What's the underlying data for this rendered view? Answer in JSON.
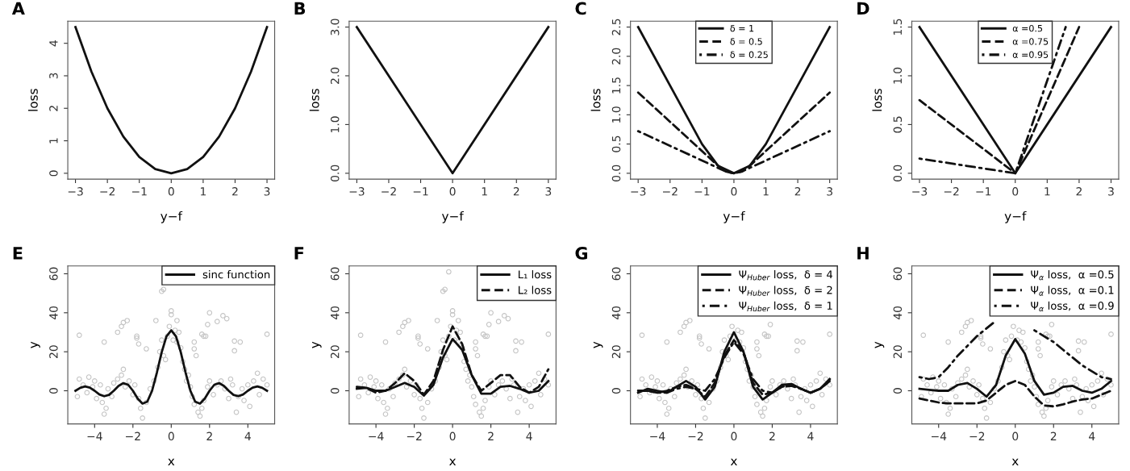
{
  "chart_data": [
    {
      "type": "line",
      "title": "A",
      "xlabel": "y−f",
      "ylabel": "loss",
      "xlim": [
        -3.24,
        3.24
      ],
      "ylim": [
        -0.18,
        4.68
      ],
      "xticks": [
        {
          "value": -3,
          "label": "−3"
        },
        {
          "value": -2,
          "label": "−2"
        },
        {
          "value": -1,
          "label": "−1"
        },
        0,
        1,
        2,
        3
      ],
      "yticks": [
        0,
        1,
        2,
        3,
        4
      ],
      "x": [
        -3,
        -2.5,
        -2,
        -1.5,
        -1,
        -0.5,
        0,
        0.5,
        1,
        1.5,
        2,
        2.5,
        3
      ],
      "series": [
        {
          "color": "#111111",
          "line_style": "solid",
          "values": [
            4.5,
            3.13,
            2,
            1.13,
            0.5,
            0.13,
            0,
            0.13,
            0.5,
            1.13,
            2,
            3.13,
            4.5
          ]
        }
      ]
    },
    {
      "type": "line",
      "title": "B",
      "xlabel": "y−f",
      "ylabel": "loss",
      "xlim": [
        -3.24,
        3.24
      ],
      "ylim": [
        -0.12,
        3.12
      ],
      "xticks": [
        {
          "value": -3,
          "label": "−3"
        },
        {
          "value": -2,
          "label": "−2"
        },
        {
          "value": -1,
          "label": "−1"
        },
        0,
        1,
        2,
        3
      ],
      "yticks": [
        {
          "value": 0,
          "label": "0.0"
        },
        {
          "value": 1,
          "label": "1.0"
        },
        {
          "value": 2,
          "label": "2.0"
        },
        {
          "value": 3,
          "label": "3.0"
        }
      ],
      "x": [
        -3,
        0,
        3
      ],
      "series": [
        {
          "color": "#111111",
          "line_style": "solid",
          "values": [
            3,
            0,
            3
          ]
        }
      ]
    },
    {
      "type": "line",
      "title": "C",
      "xlabel": "y−f",
      "ylabel": "loss",
      "xlim": [
        -3.24,
        3.24
      ],
      "ylim": [
        -0.1,
        2.6
      ],
      "legend": "top",
      "xticks": [
        {
          "value": -3,
          "label": "−3"
        },
        {
          "value": -2,
          "label": "−2"
        },
        {
          "value": -1,
          "label": "−1"
        },
        0,
        1,
        2,
        3
      ],
      "yticks": [
        {
          "value": 0,
          "label": "0.0"
        },
        0.5,
        {
          "value": 1,
          "label": "1.0"
        },
        1.5,
        {
          "value": 2,
          "label": "2.0"
        },
        2.5
      ],
      "series": [
        {
          "name": "δ = 1",
          "color": "#111111",
          "line_style": "solid",
          "x": [
            -3,
            -2,
            -1,
            -0.5,
            0,
            0.5,
            1,
            2,
            3
          ],
          "values": [
            2.5,
            1.5,
            0.5,
            0.13,
            0,
            0.13,
            0.5,
            1.5,
            2.5
          ]
        },
        {
          "name": "δ = 0.5",
          "color": "#111111",
          "line_style": "dashed",
          "x": [
            -3,
            -0.5,
            -0.25,
            0,
            0.25,
            0.5,
            3
          ],
          "values": [
            1.38,
            0.13,
            0.03,
            0,
            0.03,
            0.13,
            1.38
          ]
        },
        {
          "name": "δ = 0.25",
          "color": "#111111",
          "line_style": "dashdot",
          "x": [
            -3,
            -0.25,
            0,
            0.25,
            3
          ],
          "values": [
            0.72,
            0.03,
            0,
            0.03,
            0.72
          ]
        }
      ]
    },
    {
      "type": "line",
      "title": "D",
      "xlabel": "y−f",
      "ylabel": "loss",
      "xlim": [
        -3.24,
        3.24
      ],
      "ylim": [
        -0.06,
        1.56
      ],
      "legend": "top",
      "xticks": [
        {
          "value": -3,
          "label": "−3"
        },
        {
          "value": -2,
          "label": "−2"
        },
        {
          "value": -1,
          "label": "−1"
        },
        0,
        1,
        2,
        3
      ],
      "yticks": [
        {
          "value": 0,
          "label": "0.0"
        },
        0.5,
        {
          "value": 1,
          "label": "1.0"
        },
        1.5
      ],
      "series": [
        {
          "name": "α =0.5",
          "color": "#111111",
          "line_style": "solid",
          "x": [
            -3,
            0,
            3
          ],
          "values": [
            1.5,
            0,
            1.5
          ]
        },
        {
          "name": "α =0.75",
          "color": "#111111",
          "line_style": "dashed",
          "x": [
            -3,
            0,
            2
          ],
          "values": [
            0.75,
            0,
            1.5
          ]
        },
        {
          "name": "α =0.95",
          "color": "#111111",
          "line_style": "dashdot",
          "x": [
            -3,
            0,
            1.58
          ],
          "values": [
            0.15,
            0,
            1.5
          ]
        }
      ]
    },
    {
      "type": "line",
      "title": "E",
      "xlabel": "x",
      "ylabel": "y",
      "xlim": [
        -5.4,
        5.4
      ],
      "ylim": [
        -17,
        64
      ],
      "legend": "top right",
      "xticks": [
        {
          "value": -4,
          "label": "−4"
        },
        {
          "value": -2,
          "label": "−2"
        },
        0,
        2,
        4
      ],
      "yticks": [
        0,
        20,
        40,
        60
      ],
      "series": [
        {
          "type": "scatter",
          "marker": "circle",
          "color": "#c4c4c4",
          "x": [
            -4.9,
            -4.8,
            -4.6,
            -4.4,
            -4.3,
            -4.1,
            -4,
            -3.9,
            -3.7,
            -3.6,
            -3.5,
            -3.4,
            -3.3,
            -3.1,
            -3,
            -2.8,
            -2.6,
            -2.5,
            -2.4,
            -2.2,
            -2,
            -1.9,
            -1.7,
            -1.6,
            -1.5,
            -1.3,
            -1.1,
            -0.9,
            -0.7,
            -0.6,
            -0.5,
            -0.4,
            -0.3,
            -0.2,
            -0.1,
            0.1,
            0.2,
            0.3,
            0.4,
            0.5,
            0.6,
            0.7,
            0.8,
            0.9,
            1,
            1.1,
            1.2,
            1.4,
            1.5,
            1.6,
            1.7,
            1.9,
            2,
            2.2,
            2.4,
            2.6,
            2.8,
            3,
            3.1,
            3.2,
            3.4,
            3.5,
            3.7,
            3.8,
            4,
            4.1,
            4.3,
            4.5,
            4.6,
            4.8,
            5,
            -4.8,
            -3.5,
            -2.8,
            -2.6,
            -2.5,
            -2.3,
            -1.8,
            -1.8,
            -1.7,
            -1.3,
            1.2,
            1.2,
            1.3,
            1.6,
            1.7,
            1.8,
            1.9,
            3.3,
            3.3,
            3.6,
            5,
            -0.8,
            -0.5,
            -0.4,
            0,
            0,
            0.3,
            2,
            2.4,
            2.7,
            2.9
          ],
          "values": [
            -3,
            6,
            3,
            -1,
            7,
            2,
            5,
            -4,
            3,
            -6,
            -12,
            -9,
            1,
            -3,
            4,
            6,
            8,
            11,
            2,
            5,
            -2,
            3,
            -4,
            -9,
            -14,
            -6,
            1,
            5,
            12,
            20,
            26,
            18,
            16,
            28,
            33,
            26,
            31,
            25,
            30,
            22,
            15,
            11,
            5,
            8,
            2,
            -3,
            -7,
            -11,
            -13,
            -9,
            -5,
            2,
            5,
            -2,
            3,
            5,
            1,
            -4,
            6,
            3,
            -11,
            -3,
            1,
            -5,
            3,
            -8,
            5,
            9,
            -2,
            6,
            3,
            28.5,
            25,
            30,
            33,
            35,
            36,
            28,
            27,
            24,
            21.5,
            25,
            21.5,
            18,
            29,
            28,
            28,
            34,
            25.5,
            20.5,
            25,
            29,
            36,
            51,
            52,
            41,
            39,
            36,
            40,
            35.5,
            38.5,
            37
          ]
        },
        {
          "name": "sinc function",
          "color": "#111111",
          "line_style": "solid",
          "x": [
            -5,
            -4.75,
            -4.5,
            -4.25,
            -4,
            -3.75,
            -3.5,
            -3.25,
            -3,
            -2.75,
            -2.5,
            -2.25,
            -2,
            -1.75,
            -1.5,
            -1.25,
            -1,
            -0.75,
            -0.5,
            -0.25,
            0,
            0.25,
            0.5,
            0.75,
            1,
            1.25,
            1.5,
            1.75,
            2,
            2.25,
            2.5,
            2.75,
            3,
            3.25,
            3.5,
            3.75,
            4,
            4.25,
            4.5,
            4.75,
            5
          ],
          "values": [
            0,
            1.5,
            2.2,
            1.6,
            0,
            -1.9,
            -2.8,
            -2.1,
            0,
            2.5,
            3.9,
            3.1,
            0,
            -4.0,
            -6.6,
            -5.6,
            0,
            9.3,
            19.7,
            27.9,
            31,
            27.9,
            19.7,
            9.3,
            0,
            -5.6,
            -6.6,
            -4.0,
            0,
            3.1,
            3.9,
            2.5,
            0,
            -2.1,
            -2.8,
            -1.9,
            0,
            1.6,
            2.2,
            1.5,
            0
          ]
        }
      ]
    },
    {
      "type": "line",
      "title": "F",
      "xlabel": "x",
      "ylabel": "y",
      "xlim": [
        -5.4,
        5.4
      ],
      "ylim": [
        -17,
        64
      ],
      "legend": "top right",
      "xticks": [
        {
          "value": -4,
          "label": "−4"
        },
        {
          "value": -2,
          "label": "−2"
        },
        0,
        2,
        4
      ],
      "yticks": [
        0,
        20,
        40,
        60
      ],
      "x": [
        -5,
        -4.5,
        -4,
        -3.5,
        -3,
        -2.5,
        -2,
        -1.5,
        -1,
        -0.5,
        0,
        0.5,
        1,
        1.5,
        2,
        2.5,
        3,
        3.5,
        4,
        4.5,
        5
      ],
      "series": [
        {
          "type": "scatter",
          "marker": "circle",
          "color": "#c4c4c4",
          "x": [
            -4.9,
            -4.8,
            -4.6,
            -4.4,
            -4.3,
            -4.1,
            -4,
            -3.9,
            -3.7,
            -3.6,
            -3.5,
            -3.4,
            -3.3,
            -3.1,
            -3,
            -2.8,
            -2.6,
            -2.5,
            -2.4,
            -2.2,
            -2,
            -1.9,
            -1.7,
            -1.6,
            -1.5,
            -1.3,
            -1.1,
            -0.9,
            -0.7,
            -0.6,
            -0.5,
            -0.4,
            -0.3,
            -0.2,
            -0.1,
            0.1,
            0.2,
            0.3,
            0.4,
            0.5,
            0.6,
            0.7,
            0.8,
            0.9,
            1,
            1.1,
            1.2,
            1.4,
            1.5,
            1.6,
            1.7,
            1.9,
            2,
            2.2,
            2.4,
            2.6,
            2.8,
            3,
            3.1,
            3.2,
            3.4,
            3.5,
            3.7,
            3.8,
            4,
            4.1,
            4.3,
            4.5,
            4.6,
            4.8,
            5,
            -4.8,
            -3.5,
            -2.8,
            -2.6,
            -2.5,
            -2.3,
            -1.8,
            -1.8,
            -1.7,
            -1.3,
            1.2,
            1.2,
            1.3,
            1.6,
            1.7,
            1.8,
            1.9,
            3.3,
            3.3,
            3.6,
            5,
            -0.8,
            -0.5,
            -0.4,
            0,
            0,
            0.3,
            2,
            2.4,
            2.7,
            2.9,
            -0.2
          ],
          "values": [
            -3,
            6,
            3,
            -1,
            7,
            2,
            5,
            -4,
            3,
            -6,
            -12,
            -9,
            1,
            -3,
            4,
            6,
            8,
            11,
            2,
            5,
            -2,
            3,
            -4,
            -9,
            -14,
            -6,
            1,
            5,
            12,
            20,
            26,
            18,
            16,
            28,
            33,
            26,
            31,
            25,
            30,
            22,
            15,
            11,
            5,
            8,
            2,
            -3,
            -7,
            -11,
            -13,
            -9,
            -5,
            2,
            5,
            -2,
            3,
            5,
            1,
            -4,
            6,
            3,
            -11,
            -3,
            1,
            -5,
            3,
            -8,
            5,
            9,
            -2,
            6,
            3,
            28.5,
            25,
            30,
            33,
            35,
            36,
            28,
            27,
            24,
            21.5,
            25,
            21.5,
            18,
            29,
            28,
            28,
            34,
            25.5,
            20.5,
            25,
            29,
            36,
            51,
            52,
            41,
            39,
            36,
            40,
            35.5,
            38.5,
            37,
            61
          ]
        },
        {
          "name": "L₁ loss",
          "color": "#111111",
          "line_style": "solid",
          "values": [
            1,
            1.5,
            0,
            0,
            2,
            4,
            2,
            -2.5,
            3,
            17,
            26.5,
            21,
            8,
            -1.5,
            -1.5,
            2,
            2.5,
            1,
            -1,
            0,
            5
          ]
        },
        {
          "name": "L₂ loss",
          "color": "#111111",
          "line_style": "dashed",
          "values": [
            2,
            1.5,
            -1,
            0,
            4,
            9,
            5,
            -2,
            5,
            21,
            33,
            24,
            8,
            0,
            4,
            8,
            8,
            2,
            -1,
            2,
            11
          ]
        }
      ]
    },
    {
      "type": "line",
      "title": "G",
      "xlabel": "x",
      "ylabel": "y",
      "xlim": [
        -5.4,
        5.4
      ],
      "ylim": [
        -17,
        64
      ],
      "legend": "top right",
      "xticks": [
        {
          "value": -4,
          "label": "−4"
        },
        {
          "value": -2,
          "label": "−2"
        },
        0,
        2,
        4
      ],
      "yticks": [
        0,
        20,
        40,
        60
      ],
      "x": [
        -5,
        -4.5,
        -4,
        -3.5,
        -3,
        -2.5,
        -2,
        -1.5,
        -1,
        -0.5,
        0,
        0.5,
        1,
        1.5,
        2,
        2.5,
        3,
        3.5,
        4,
        4.5,
        5
      ],
      "series": [
        {
          "type": "scatter",
          "marker": "circle",
          "color": "#c4c4c4",
          "x": [
            -4.9,
            -4.8,
            -4.6,
            -4.4,
            -4.3,
            -4.1,
            -4,
            -3.9,
            -3.7,
            -3.6,
            -3.5,
            -3.4,
            -3.3,
            -3.1,
            -3,
            -2.8,
            -2.6,
            -2.5,
            -2.4,
            -2.2,
            -2,
            -1.9,
            -1.7,
            -1.6,
            -1.5,
            -1.3,
            -1.1,
            -0.9,
            -0.7,
            -0.6,
            -0.5,
            -0.4,
            -0.3,
            -0.2,
            -0.1,
            0.1,
            0.2,
            0.3,
            0.4,
            0.5,
            0.6,
            0.7,
            0.8,
            0.9,
            1,
            1.1,
            1.2,
            1.4,
            1.5,
            1.6,
            1.7,
            1.9,
            2,
            2.2,
            2.4,
            2.6,
            2.8,
            3,
            3.1,
            3.2,
            3.4,
            3.5,
            3.7,
            3.8,
            4,
            4.1,
            4.3,
            4.5,
            4.6,
            4.8,
            5,
            -4.8,
            -3.5,
            -2.8,
            -2.6,
            -2.5,
            -2.3,
            -1.8,
            -1.8,
            -1.7,
            -1.3,
            1.2,
            1.2,
            1.3,
            1.6,
            1.7,
            1.8,
            1.9,
            3.3,
            3.3,
            3.6,
            5
          ],
          "values": [
            -3,
            6,
            3,
            -1,
            7,
            2,
            5,
            -4,
            3,
            -6,
            -12,
            -9,
            1,
            -3,
            4,
            6,
            8,
            11,
            2,
            5,
            -2,
            3,
            -4,
            -9,
            -14,
            -6,
            1,
            5,
            12,
            20,
            26,
            18,
            16,
            28,
            33,
            26,
            31,
            25,
            30,
            22,
            15,
            11,
            5,
            8,
            2,
            -3,
            -7,
            -11,
            -13,
            -9,
            -5,
            2,
            5,
            -2,
            3,
            5,
            1,
            -4,
            6,
            3,
            -11,
            -3,
            1,
            -5,
            3,
            -8,
            5,
            9,
            -2,
            6,
            3,
            28.5,
            25,
            30,
            33,
            35,
            36,
            28,
            27,
            24,
            21.5,
            25,
            21.5,
            18,
            29,
            28,
            28,
            34,
            25.5,
            20.5,
            25,
            29
          ]
        },
        {
          "name": "Ψ$_{Huber}$ loss,  δ = 4",
          "color": "#111111",
          "line_style": "solid",
          "values": [
            -1,
            1,
            0,
            -1,
            2,
            5,
            2,
            -4.5,
            2,
            20,
            30,
            20,
            2,
            -4.5,
            -1,
            3,
            3.5,
            1,
            -1,
            1,
            6
          ]
        },
        {
          "name": "Ψ$_{Huber}$ loss,  δ = 2",
          "color": "#111111",
          "line_style": "dashed",
          "values": [
            0,
            0,
            -1,
            0,
            2,
            3,
            1,
            -3,
            4,
            18,
            26,
            20,
            4,
            -2,
            -1,
            2,
            3,
            1,
            -1,
            1,
            5
          ]
        },
        {
          "name": "Ψ$_{Huber}$ loss,  δ = 1",
          "color": "#111111",
          "line_style": "dashdot",
          "values": [
            0,
            0,
            -1,
            -1,
            1,
            2,
            1,
            0,
            6,
            17,
            25,
            19,
            6,
            0,
            -1,
            2,
            2.5,
            1,
            -1,
            1,
            5
          ]
        }
      ]
    },
    {
      "type": "line",
      "title": "H",
      "xlabel": "x",
      "ylabel": "y",
      "xlim": [
        -5.4,
        5.4
      ],
      "ylim": [
        -17,
        64
      ],
      "legend": "top right",
      "xticks": [
        {
          "value": -4,
          "label": "−4"
        },
        {
          "value": -2,
          "label": "−2"
        },
        0,
        2,
        4
      ],
      "yticks": [
        0,
        20,
        40,
        60
      ],
      "x": [
        -5,
        -4.5,
        -4,
        -3.5,
        -3,
        -2.5,
        -2,
        -1.5,
        -1,
        -0.5,
        0,
        0.5,
        1,
        1.5,
        2,
        2.5,
        3,
        3.5,
        4,
        4.5,
        5
      ],
      "series": [
        {
          "type": "scatter",
          "marker": "circle",
          "color": "#c4c4c4",
          "x": [
            -4.9,
            -4.8,
            -4.6,
            -4.4,
            -4.3,
            -4.1,
            -4,
            -3.9,
            -3.7,
            -3.6,
            -3.5,
            -3.4,
            -3.3,
            -3.1,
            -3,
            -2.8,
            -2.6,
            -2.5,
            -2.4,
            -2.2,
            -2,
            -1.9,
            -1.7,
            -1.6,
            -1.5,
            -1.3,
            -1.1,
            -0.9,
            -0.7,
            -0.6,
            -0.5,
            -0.4,
            -0.3,
            -0.2,
            -0.1,
            0.1,
            0.2,
            0.3,
            0.4,
            0.5,
            0.6,
            0.7,
            0.8,
            0.9,
            1,
            1.1,
            1.2,
            1.4,
            1.5,
            1.6,
            1.7,
            1.9,
            2,
            2.2,
            2.4,
            2.6,
            2.8,
            3,
            3.1,
            3.2,
            3.4,
            3.5,
            3.7,
            3.8,
            4,
            4.1,
            4.3,
            4.5,
            4.6,
            4.8,
            5,
            -4.8,
            -3.5,
            -2.8,
            -2.6,
            -2.5,
            -2.3,
            -1.8,
            -1.8,
            -1.7,
            -1.3,
            1.2,
            1.2,
            1.3,
            1.6,
            1.7,
            1.8,
            1.9,
            3.3,
            3.3,
            3.6,
            5
          ],
          "values": [
            -3,
            6,
            3,
            -1,
            7,
            2,
            5,
            -4,
            3,
            -6,
            -12,
            -9,
            1,
            -3,
            4,
            6,
            8,
            11,
            2,
            5,
            -2,
            3,
            -4,
            -9,
            -14,
            -6,
            1,
            5,
            12,
            20,
            26,
            18,
            16,
            28,
            33,
            26,
            31,
            25,
            30,
            22,
            15,
            11,
            5,
            8,
            2,
            -3,
            -7,
            -11,
            -13,
            -9,
            -5,
            2,
            5,
            -2,
            3,
            5,
            1,
            -4,
            6,
            3,
            -11,
            -3,
            1,
            -5,
            3,
            -8,
            5,
            9,
            -2,
            6,
            3,
            28.5,
            25,
            30,
            33,
            35,
            36,
            28,
            27,
            24,
            21.5,
            25,
            21.5,
            18,
            29,
            28,
            28,
            34,
            25.5,
            20.5,
            25,
            29
          ]
        },
        {
          "name": "Ψ$_{α}$ loss,  α =0.5",
          "color": "#111111",
          "line_style": "solid",
          "values": [
            1,
            0.5,
            0,
            0,
            3,
            4,
            1,
            -3,
            3,
            18,
            26.5,
            19,
            5,
            -2,
            -1,
            2,
            2.5,
            0,
            -1,
            1,
            5
          ]
        },
        {
          "name": "Ψ$_{α}$ loss,  α =0.1",
          "color": "#111111",
          "line_style": "dashed",
          "values": [
            -4,
            -5,
            -6,
            -6.5,
            -6.5,
            -6.5,
            -6.5,
            -5,
            -1,
            3,
            5,
            3,
            -3,
            -7.5,
            -8,
            -7,
            -5.5,
            -4.5,
            -4,
            -2,
            0
          ]
        },
        {
          "name": "Ψ$_{α}$ loss,  α =0.9",
          "color": "#111111",
          "line_style": "dashdot",
          "values": [
            7,
            6,
            7,
            12,
            18,
            23,
            28,
            32,
            36,
            null,
            null,
            null,
            31,
            28,
            25,
            21,
            17,
            13,
            10,
            7,
            6
          ]
        }
      ]
    }
  ]
}
